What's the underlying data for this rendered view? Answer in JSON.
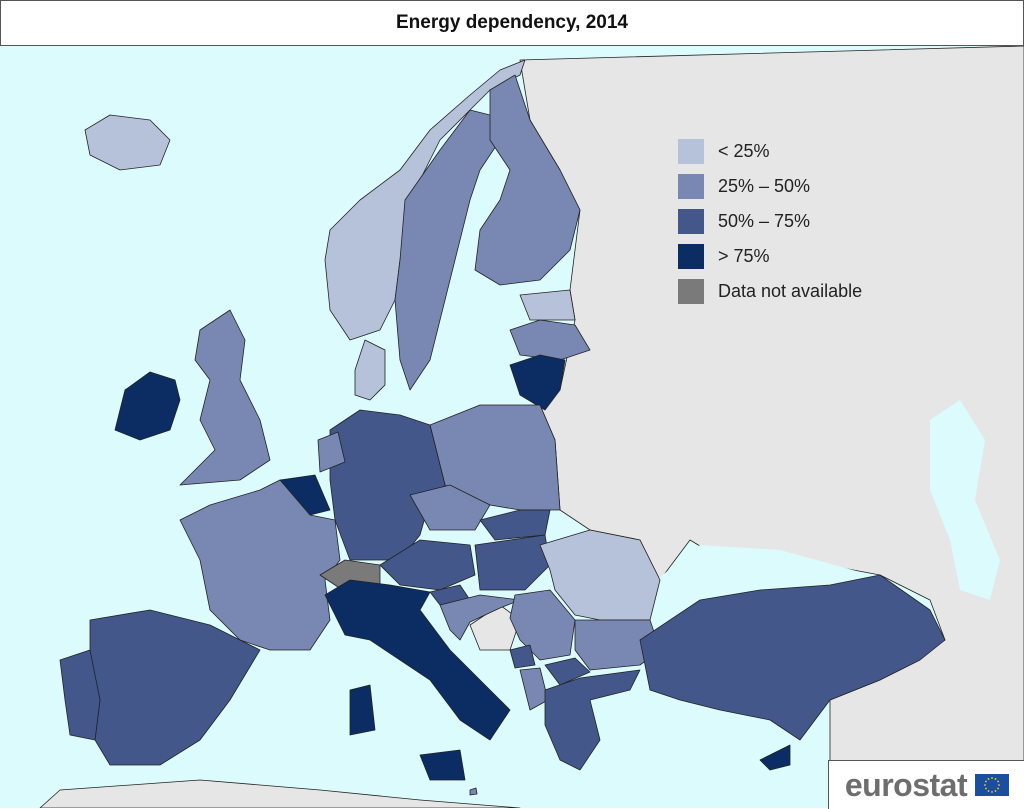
{
  "title": "Energy dependency, 2014",
  "colors": {
    "sea": "#dcfbfc",
    "non_eu_land": "#e6e6e6",
    "cat1": "#b6c2d9",
    "cat2": "#7987b3",
    "cat3": "#43578a",
    "cat4": "#0b2d63",
    "na": "#7a7a7a"
  },
  "legend": [
    {
      "label": "< 25%",
      "color": "#b6c2d9"
    },
    {
      "label": "25% – 50%",
      "color": "#7987b3"
    },
    {
      "label": "50% – 75%",
      "color": "#43578a"
    },
    {
      "label": "> 75%",
      "color": "#0b2d63"
    },
    {
      "label": "Data not available",
      "color": "#7a7a7a"
    }
  ],
  "logo": {
    "text": "eurostat"
  }
}
